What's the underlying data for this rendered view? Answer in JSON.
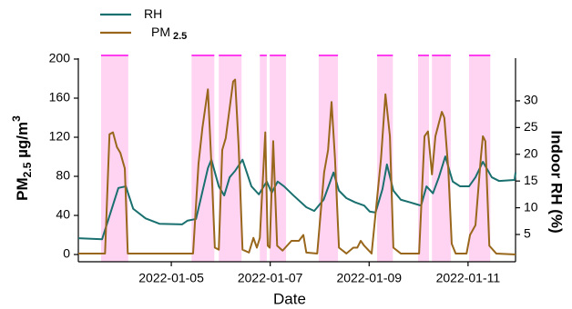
{
  "chart_data": {
    "type": "line",
    "xlabel": "Date",
    "ylabel": {
      "main": "PM",
      "sub": "2.5",
      "rest": " µg/m",
      "sup": "3"
    },
    "y2label": "Indoor RH (%)",
    "xlim": [
      3.12,
      11.96
    ],
    "xticks": [
      {
        "value": 5,
        "label": "2022-01-05"
      },
      {
        "value": 7,
        "label": "2022-01-07"
      },
      {
        "value": 9,
        "label": "2022-01-09"
      },
      {
        "value": 11,
        "label": "2022-01-11"
      }
    ],
    "ylim": [
      -7.4,
      206.5
    ],
    "yticks": [
      0,
      40,
      80,
      120,
      160,
      200
    ],
    "y2lim": [
      -0.1,
      39.0
    ],
    "y2ticks": [
      5,
      10,
      15,
      20,
      25,
      30
    ],
    "shaded_spans": [
      [
        3.58,
        4.13
      ],
      [
        5.41,
        5.87
      ],
      [
        5.96,
        6.42
      ],
      [
        6.79,
        6.93
      ],
      [
        6.99,
        7.32
      ],
      [
        7.98,
        8.37
      ],
      [
        9.16,
        9.48
      ],
      [
        9.99,
        10.21
      ],
      [
        10.27,
        10.65
      ],
      [
        11.02,
        11.45
      ]
    ],
    "shade_color": "#ffd3f2",
    "shade_edge_color": "#ff3cf0",
    "legend": "top-left",
    "series": [
      {
        "name": "RH",
        "color": "#19706f",
        "axis": "y2",
        "x": [
          3.12,
          3.6,
          3.93,
          4.08,
          4.23,
          4.48,
          4.76,
          5.22,
          5.33,
          5.5,
          5.74,
          5.81,
          5.96,
          6.07,
          6.18,
          6.29,
          6.44,
          6.62,
          6.77,
          6.93,
          7.03,
          7.15,
          7.28,
          7.47,
          7.73,
          7.89,
          8.08,
          8.28,
          8.39,
          8.54,
          8.72,
          8.9,
          9.01,
          9.13,
          9.27,
          9.36,
          9.49,
          9.64,
          9.83,
          10.05,
          10.16,
          10.29,
          10.41,
          10.54,
          10.69,
          10.84,
          11.02,
          11.15,
          11.3,
          11.48,
          11.63,
          11.94,
          11.96
        ],
        "values": [
          4.3,
          4.1,
          13.7,
          14.0,
          9.8,
          8.0,
          7.0,
          6.9,
          7.6,
          7.9,
          17.4,
          19.0,
          14.0,
          12.3,
          15.7,
          16.9,
          19.0,
          14.0,
          12.5,
          14.9,
          12.8,
          14.9,
          14.0,
          12.3,
          10.1,
          9.4,
          11.5,
          16.6,
          13.2,
          11.8,
          11.0,
          10.4,
          9.3,
          9.1,
          13.5,
          18.1,
          13.2,
          11.5,
          11.0,
          10.4,
          14.0,
          12.7,
          15.7,
          19.6,
          14.9,
          14.0,
          14.0,
          15.7,
          18.6,
          15.7,
          15.0,
          15.2,
          16.6
        ]
      },
      {
        "name": "PM",
        "name_sub": "2.5",
        "color": "#98671c",
        "x": [
          3.12,
          3.66,
          3.75,
          3.82,
          3.9,
          3.97,
          4.06,
          4.12,
          5.44,
          5.55,
          5.63,
          5.74,
          5.81,
          5.88,
          5.96,
          6.03,
          6.1,
          6.25,
          6.29,
          6.36,
          6.44,
          6.57,
          6.66,
          6.73,
          6.79,
          6.9,
          6.95,
          6.99,
          7.06,
          7.14,
          7.25,
          7.43,
          7.58,
          7.67,
          7.73,
          7.95,
          8.09,
          8.17,
          8.24,
          8.31,
          8.39,
          8.54,
          8.68,
          8.76,
          8.83,
          8.9,
          9.05,
          9.24,
          9.33,
          9.42,
          9.49,
          9.64,
          10.01,
          10.12,
          10.19,
          10.27,
          10.34,
          10.47,
          10.52,
          10.6,
          10.67,
          10.75,
          10.97,
          11.04,
          11.15,
          11.26,
          11.3,
          11.35,
          11.43,
          11.57,
          11.96
        ],
        "values": [
          1,
          1,
          123,
          125,
          110,
          104,
          88,
          1,
          1,
          93,
          130,
          169,
          93,
          7,
          5,
          107,
          119,
          177,
          179,
          112,
          5,
          2,
          17,
          7,
          17,
          125,
          9,
          7,
          116,
          9,
          4,
          14,
          14,
          20,
          2,
          1,
          84,
          107,
          156,
          98,
          7,
          1,
          7,
          7,
          14,
          9,
          1,
          98,
          164,
          121,
          7,
          1,
          1,
          121,
          126,
          82,
          121,
          146,
          140,
          88,
          11,
          1,
          1,
          20,
          30,
          100,
          121,
          116,
          9,
          1,
          0
        ]
      }
    ]
  }
}
